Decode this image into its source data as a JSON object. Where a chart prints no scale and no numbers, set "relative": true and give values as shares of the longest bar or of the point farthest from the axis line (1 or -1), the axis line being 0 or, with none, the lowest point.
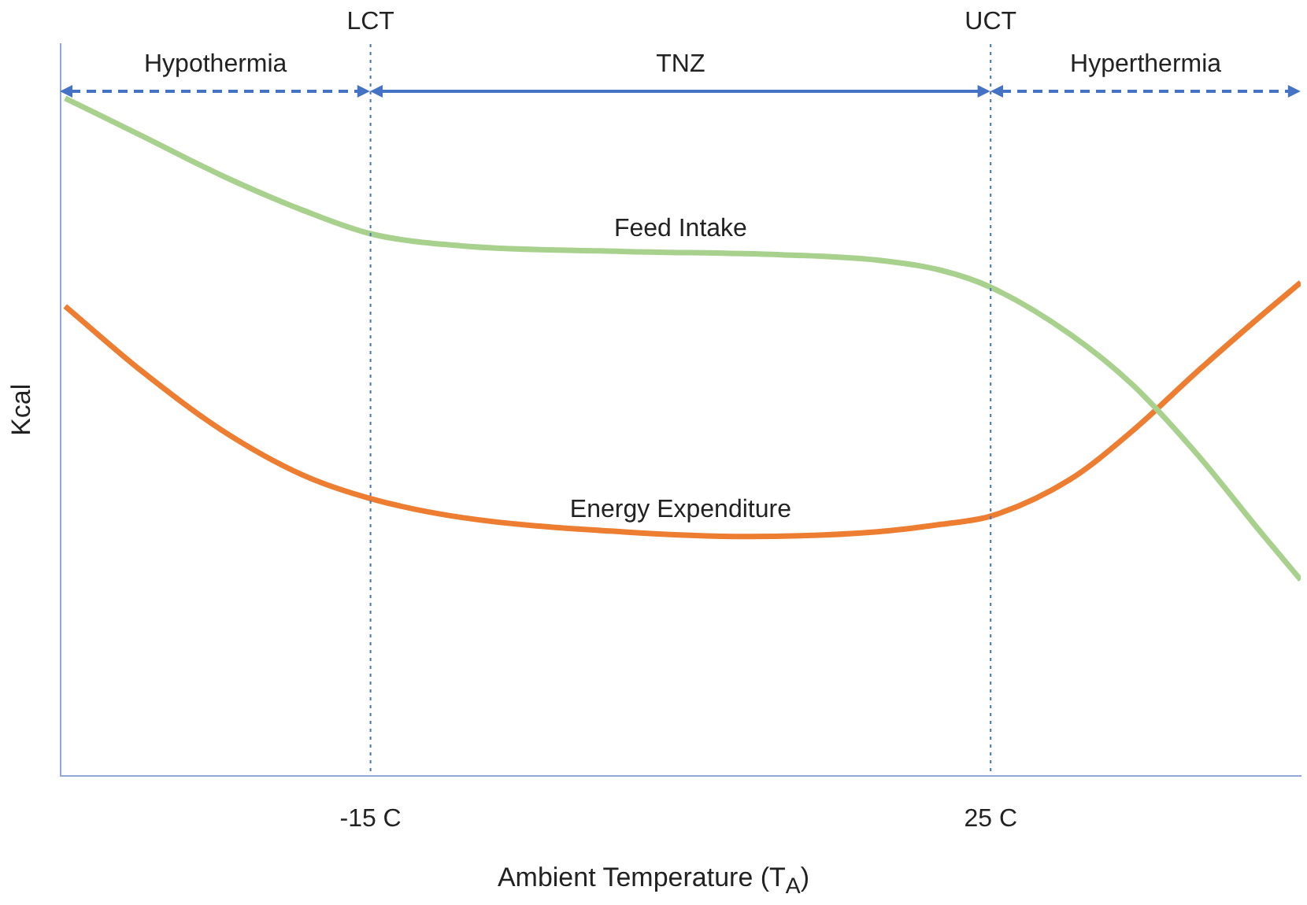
{
  "chart_data": {
    "type": "line",
    "relative": true,
    "xlabel": "Ambient Temperature (T$_{A}$)",
    "ylabel": "Kcal",
    "xlim": [
      -35,
      45
    ],
    "xticks": [
      {
        "value": -15,
        "label": "-15 C"
      },
      {
        "value": 25,
        "label": "25 C"
      }
    ],
    "grid": false,
    "legend": false,
    "marker": "none",
    "line_style": "solid",
    "ref_lines": [
      {
        "axis": "x",
        "value": -15,
        "label": "LCT",
        "color": "#4472c4",
        "line_style": "dotted"
      },
      {
        "axis": "x",
        "value": 25,
        "label": "UCT",
        "color": "#4472c4",
        "line_style": "dotted"
      }
    ],
    "annotations": [
      "Hypothermia",
      "TNZ",
      "Hyperthermia"
    ],
    "series": [
      {
        "name": "Feed Intake",
        "color": "#a9d18e",
        "x": [
          -34.7,
          -29.7,
          -24.6,
          -19.4,
          -15,
          -9.1,
          1.2,
          11.5,
          17.7,
          21.8,
          25,
          30.1,
          34.2,
          38.3,
          42.4,
          45
        ],
        "values": [
          1.0,
          0.944,
          0.886,
          0.835,
          0.8,
          0.782,
          0.774,
          0.769,
          0.761,
          0.746,
          0.721,
          0.652,
          0.576,
          0.475,
          0.36,
          0.289
        ]
      },
      {
        "name": "Energy Expenditure",
        "color": "#ed7d31",
        "x": [
          -34.7,
          -29.7,
          -24.6,
          -19.4,
          -15,
          -9.1,
          1.2,
          9.4,
          17.7,
          21.8,
          25,
          30.1,
          34.2,
          38.3,
          42.4,
          45
        ],
        "values": [
          0.693,
          0.596,
          0.51,
          0.444,
          0.409,
          0.381,
          0.36,
          0.353,
          0.36,
          0.371,
          0.383,
          0.437,
          0.51,
          0.596,
          0.678,
          0.728
        ]
      }
    ]
  }
}
